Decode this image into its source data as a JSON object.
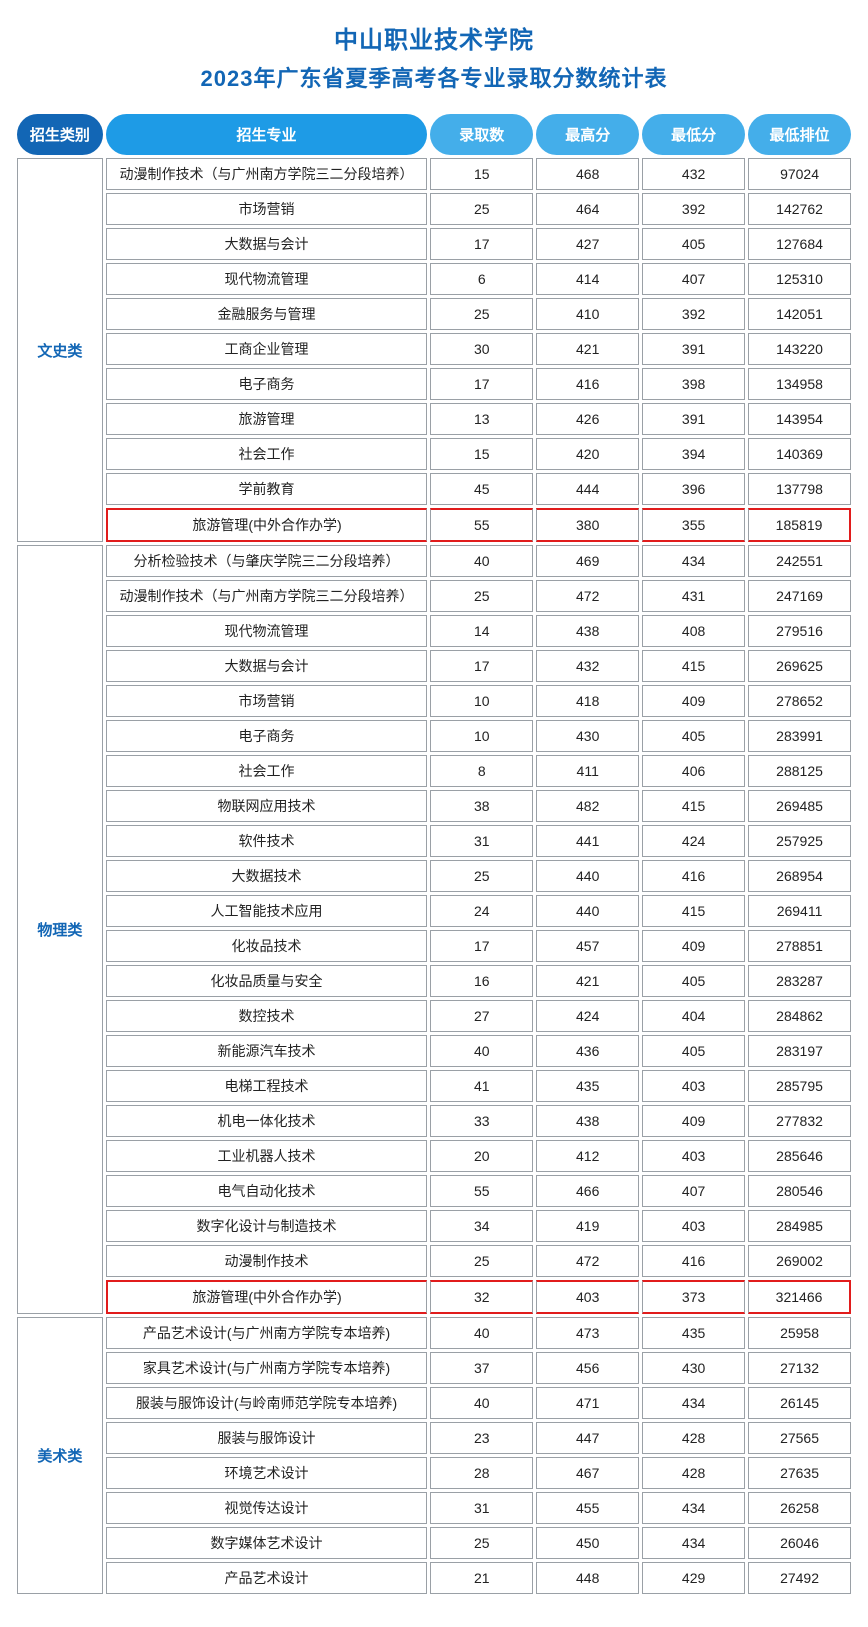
{
  "title_line1": "中山职业技术学院",
  "title_line2": "2023年广东省夏季高考各专业录取分数统计表",
  "colors": {
    "header_dark": "#1266b5",
    "header_mid": "#1e9be6",
    "header_light": "#44aeea",
    "highlight_border": "#e11c1c",
    "cell_border": "#9aa0a6",
    "title_color": "#1266b5"
  },
  "headers": {
    "category": "招生类别",
    "major": "招生专业",
    "count": "录取数",
    "max": "最高分",
    "min": "最低分",
    "rank": "最低排位"
  },
  "groups": [
    {
      "category": "文史类",
      "rows": [
        {
          "major": "动漫制作技术（与广州南方学院三二分段培养）",
          "count": 15,
          "max": 468,
          "min": 432,
          "rank": 97024
        },
        {
          "major": "市场营销",
          "count": 25,
          "max": 464,
          "min": 392,
          "rank": 142762
        },
        {
          "major": "大数据与会计",
          "count": 17,
          "max": 427,
          "min": 405,
          "rank": 127684
        },
        {
          "major": "现代物流管理",
          "count": 6,
          "max": 414,
          "min": 407,
          "rank": 125310
        },
        {
          "major": "金融服务与管理",
          "count": 25,
          "max": 410,
          "min": 392,
          "rank": 142051
        },
        {
          "major": "工商企业管理",
          "count": 30,
          "max": 421,
          "min": 391,
          "rank": 143220
        },
        {
          "major": "电子商务",
          "count": 17,
          "max": 416,
          "min": 398,
          "rank": 134958
        },
        {
          "major": "旅游管理",
          "count": 13,
          "max": 426,
          "min": 391,
          "rank": 143954
        },
        {
          "major": "社会工作",
          "count": 15,
          "max": 420,
          "min": 394,
          "rank": 140369
        },
        {
          "major": "学前教育",
          "count": 45,
          "max": 444,
          "min": 396,
          "rank": 137798
        },
        {
          "major": "旅游管理(中外合作办学)",
          "count": 55,
          "max": 380,
          "min": 355,
          "rank": 185819,
          "highlight": true
        }
      ]
    },
    {
      "category": "物理类",
      "rows": [
        {
          "major": "分析检验技术（与肇庆学院三二分段培养）",
          "count": 40,
          "max": 469,
          "min": 434,
          "rank": 242551
        },
        {
          "major": "动漫制作技术（与广州南方学院三二分段培养）",
          "count": 25,
          "max": 472,
          "min": 431,
          "rank": 247169
        },
        {
          "major": "现代物流管理",
          "count": 14,
          "max": 438,
          "min": 408,
          "rank": 279516
        },
        {
          "major": "大数据与会计",
          "count": 17,
          "max": 432,
          "min": 415,
          "rank": 269625
        },
        {
          "major": "市场营销",
          "count": 10,
          "max": 418,
          "min": 409,
          "rank": 278652
        },
        {
          "major": "电子商务",
          "count": 10,
          "max": 430,
          "min": 405,
          "rank": 283991
        },
        {
          "major": "社会工作",
          "count": 8,
          "max": 411,
          "min": 406,
          "rank": 288125
        },
        {
          "major": "物联网应用技术",
          "count": 38,
          "max": 482,
          "min": 415,
          "rank": 269485
        },
        {
          "major": "软件技术",
          "count": 31,
          "max": 441,
          "min": 424,
          "rank": 257925
        },
        {
          "major": "大数据技术",
          "count": 25,
          "max": 440,
          "min": 416,
          "rank": 268954
        },
        {
          "major": "人工智能技术应用",
          "count": 24,
          "max": 440,
          "min": 415,
          "rank": 269411
        },
        {
          "major": "化妆品技术",
          "count": 17,
          "max": 457,
          "min": 409,
          "rank": 278851
        },
        {
          "major": "化妆品质量与安全",
          "count": 16,
          "max": 421,
          "min": 405,
          "rank": 283287
        },
        {
          "major": "数控技术",
          "count": 27,
          "max": 424,
          "min": 404,
          "rank": 284862
        },
        {
          "major": "新能源汽车技术",
          "count": 40,
          "max": 436,
          "min": 405,
          "rank": 283197
        },
        {
          "major": "电梯工程技术",
          "count": 41,
          "max": 435,
          "min": 403,
          "rank": 285795
        },
        {
          "major": "机电一体化技术",
          "count": 33,
          "max": 438,
          "min": 409,
          "rank": 277832
        },
        {
          "major": "工业机器人技术",
          "count": 20,
          "max": 412,
          "min": 403,
          "rank": 285646
        },
        {
          "major": "电气自动化技术",
          "count": 55,
          "max": 466,
          "min": 407,
          "rank": 280546
        },
        {
          "major": "数字化设计与制造技术",
          "count": 34,
          "max": 419,
          "min": 403,
          "rank": 284985
        },
        {
          "major": "动漫制作技术",
          "count": 25,
          "max": 472,
          "min": 416,
          "rank": 269002
        },
        {
          "major": "旅游管理(中外合作办学)",
          "count": 32,
          "max": 403,
          "min": 373,
          "rank": 321466,
          "highlight": true
        }
      ]
    },
    {
      "category": "美术类",
      "rows": [
        {
          "major": "产品艺术设计(与广州南方学院专本培养)",
          "count": 40,
          "max": 473,
          "min": 435,
          "rank": 25958
        },
        {
          "major": "家具艺术设计(与广州南方学院专本培养)",
          "count": 37,
          "max": 456,
          "min": 430,
          "rank": 27132
        },
        {
          "major": "服装与服饰设计(与岭南师范学院专本培养)",
          "count": 40,
          "max": 471,
          "min": 434,
          "rank": 26145
        },
        {
          "major": "服装与服饰设计",
          "count": 23,
          "max": 447,
          "min": 428,
          "rank": 27565
        },
        {
          "major": "环境艺术设计",
          "count": 28,
          "max": 467,
          "min": 428,
          "rank": 27635
        },
        {
          "major": "视觉传达设计",
          "count": 31,
          "max": 455,
          "min": 434,
          "rank": 26258
        },
        {
          "major": "数字媒体艺术设计",
          "count": 25,
          "max": 450,
          "min": 434,
          "rank": 26046
        },
        {
          "major": "产品艺术设计",
          "count": 21,
          "max": 448,
          "min": 429,
          "rank": 27492
        }
      ]
    }
  ]
}
